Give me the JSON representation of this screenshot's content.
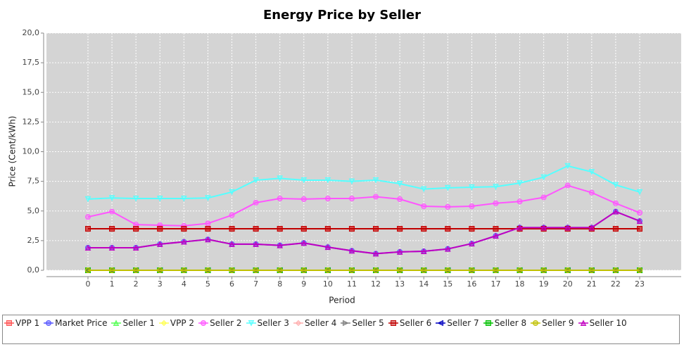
{
  "chart_data": {
    "type": "line",
    "title": "Energy Price by Seller",
    "x_label": "Period",
    "y_label": "Price (Cent/kWh)",
    "categories": [
      "0",
      "1",
      "2",
      "3",
      "4",
      "5",
      "6",
      "7",
      "8",
      "9",
      "10",
      "11",
      "12",
      "13",
      "14",
      "15",
      "16",
      "17",
      "18",
      "19",
      "20",
      "21",
      "22",
      "23"
    ],
    "ylim": [
      0,
      20
    ],
    "yticks": [
      {
        "value": 0,
        "label": "0,0"
      },
      {
        "value": 2.5,
        "label": "2,5"
      },
      {
        "value": 5,
        "label": "5,0"
      },
      {
        "value": 7.5,
        "label": "7,5"
      },
      {
        "value": 10,
        "label": "10,0"
      },
      {
        "value": 12.5,
        "label": "12,5"
      },
      {
        "value": 15,
        "label": "15,0"
      },
      {
        "value": 17.5,
        "label": "17,5"
      },
      {
        "value": 20,
        "label": "20,0"
      }
    ],
    "grid": true,
    "legend": "bottom",
    "series": [
      {
        "name": "VPP 1",
        "color": "#ff5555",
        "marker": "square",
        "values": [
          3.5,
          3.5,
          3.5,
          3.5,
          3.5,
          3.5,
          3.5,
          3.5,
          3.5,
          3.5,
          3.5,
          3.5,
          3.5,
          3.5,
          3.5,
          3.5,
          3.5,
          3.5,
          3.5,
          3.5,
          3.5,
          3.5,
          3.5,
          3.5
        ]
      },
      {
        "name": "Market Price",
        "color": "#5555ff",
        "marker": "circle",
        "values": [
          1.9,
          1.9,
          1.9,
          2.2,
          2.4,
          2.6,
          2.2,
          2.2,
          2.1,
          2.3,
          1.95,
          1.65,
          1.4,
          1.55,
          1.6,
          1.8,
          2.25,
          2.9,
          3.6,
          3.6,
          3.6,
          3.6,
          4.95,
          4.15
        ]
      },
      {
        "name": "Seller 1",
        "color": "#55ff55",
        "marker": "triangle",
        "values": [
          0,
          0,
          0,
          0,
          0,
          0,
          0,
          0,
          0,
          0,
          0,
          0,
          0,
          0,
          0,
          0,
          0,
          0,
          0,
          0,
          0,
          0,
          0,
          0
        ]
      },
      {
        "name": "VPP 2",
        "color": "#ffff55",
        "marker": "diamond",
        "values": [
          0,
          0,
          0,
          0,
          0,
          0,
          0,
          0,
          0,
          0,
          0,
          0,
          0,
          0,
          0,
          0,
          0,
          0,
          0,
          0,
          0,
          0,
          0,
          0
        ]
      },
      {
        "name": "Seller 2",
        "color": "#ff55ff",
        "marker": "circle",
        "values": [
          4.5,
          4.95,
          3.85,
          3.8,
          3.75,
          3.95,
          4.65,
          5.7,
          6.05,
          6.0,
          6.05,
          6.05,
          6.2,
          6.0,
          5.4,
          5.35,
          5.4,
          5.65,
          5.8,
          6.15,
          7.15,
          6.55,
          5.65,
          4.85
        ]
      },
      {
        "name": "Seller 3",
        "color": "#55ffff",
        "marker": "triangle-down",
        "values": [
          6.0,
          6.1,
          6.05,
          6.05,
          6.05,
          6.1,
          6.6,
          7.6,
          7.75,
          7.6,
          7.6,
          7.5,
          7.6,
          7.3,
          6.85,
          6.95,
          7.0,
          7.05,
          7.35,
          7.85,
          8.8,
          8.3,
          7.2,
          6.6
        ]
      },
      {
        "name": "Seller 4",
        "color": "#ffafaf",
        "marker": "diamond",
        "values": [
          0,
          0,
          0,
          0,
          0,
          0,
          0,
          0,
          0,
          0,
          0,
          0,
          0,
          0,
          0,
          0,
          0,
          0,
          0,
          0,
          0,
          0,
          0,
          0
        ]
      },
      {
        "name": "Seller 5",
        "color": "#808080",
        "marker": "triangle-right",
        "values": [
          0,
          0,
          0,
          0,
          0,
          0,
          0,
          0,
          0,
          0,
          0,
          0,
          0,
          0,
          0,
          0,
          0,
          0,
          0,
          0,
          0,
          0,
          0,
          0
        ]
      },
      {
        "name": "Seller 6",
        "color": "#c00000",
        "marker": "square",
        "values": [
          3.5,
          3.5,
          3.5,
          3.5,
          3.5,
          3.5,
          3.5,
          3.5,
          3.5,
          3.5,
          3.5,
          3.5,
          3.5,
          3.5,
          3.5,
          3.5,
          3.5,
          3.5,
          3.5,
          3.5,
          3.5,
          3.5,
          3.5,
          3.5
        ]
      },
      {
        "name": "Seller 7",
        "color": "#0000c0",
        "marker": "triangle-left",
        "values": [
          0,
          0,
          0,
          0,
          0,
          0,
          0,
          0,
          0,
          0,
          0,
          0,
          0,
          0,
          0,
          0,
          0,
          0,
          0,
          0,
          0,
          0,
          0,
          0
        ]
      },
      {
        "name": "Seller 8",
        "color": "#00c000",
        "marker": "square",
        "values": [
          0,
          0,
          0,
          0,
          0,
          0,
          0,
          0,
          0,
          0,
          0,
          0,
          0,
          0,
          0,
          0,
          0,
          0,
          0,
          0,
          0,
          0,
          0,
          0
        ]
      },
      {
        "name": "Seller 9",
        "color": "#c0c000",
        "marker": "circle",
        "values": [
          0,
          0,
          0,
          0,
          0,
          0,
          0,
          0,
          0,
          0,
          0,
          0,
          0,
          0,
          0,
          0,
          0,
          0,
          0,
          0,
          0,
          0,
          0,
          0
        ]
      },
      {
        "name": "Seller 10",
        "color": "#c000c0",
        "marker": "triangle",
        "values": [
          1.9,
          1.9,
          1.9,
          2.2,
          2.4,
          2.6,
          2.2,
          2.2,
          2.1,
          2.3,
          1.95,
          1.65,
          1.4,
          1.55,
          1.6,
          1.8,
          2.25,
          2.9,
          3.6,
          3.6,
          3.6,
          3.6,
          4.95,
          4.15
        ]
      }
    ]
  }
}
